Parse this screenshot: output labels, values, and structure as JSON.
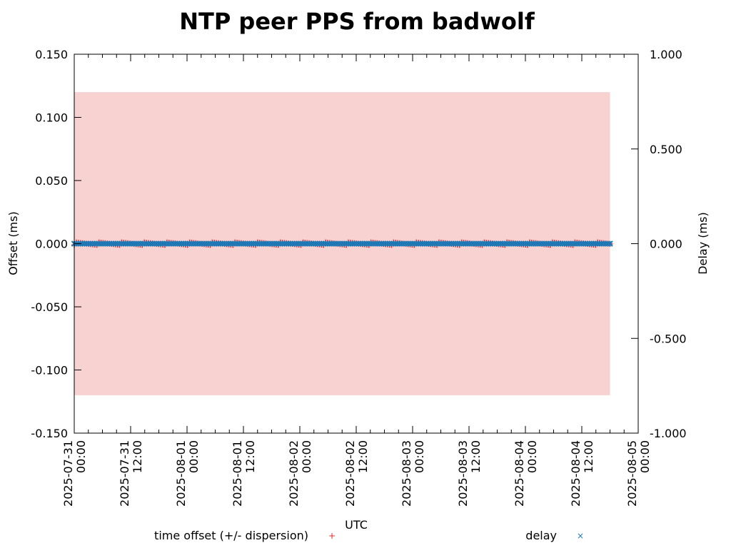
{
  "chart_data": {
    "type": "scatter",
    "title": "NTP peer PPS from badwolf",
    "xlabel": "UTC",
    "ylabel": "Offset (ms)",
    "y2label": "Delay (ms)",
    "x_range": [
      "2025-07-31 00:00",
      "2025-08-05 00:00"
    ],
    "x_ticks": [
      [
        "2025-07-31",
        "00:00"
      ],
      [
        "2025-07-31",
        "12:00"
      ],
      [
        "2025-08-01",
        "00:00"
      ],
      [
        "2025-08-01",
        "12:00"
      ],
      [
        "2025-08-02",
        "00:00"
      ],
      [
        "2025-08-02",
        "12:00"
      ],
      [
        "2025-08-03",
        "00:00"
      ],
      [
        "2025-08-03",
        "12:00"
      ],
      [
        "2025-08-04",
        "00:00"
      ],
      [
        "2025-08-04",
        "12:00"
      ],
      [
        "2025-08-05",
        "00:00"
      ]
    ],
    "ylim": [
      -0.15,
      0.15
    ],
    "y_ticks": [
      "0.150",
      "0.100",
      "0.050",
      "0.000",
      "-0.050",
      "-0.100",
      "-0.150"
    ],
    "y2lim": [
      -1.0,
      1.0
    ],
    "y2_ticks": [
      "1.000",
      "0.500",
      "0.000",
      "-0.500",
      "-1.000"
    ],
    "data_x_range": [
      "2025-07-31 00:00",
      "2025-08-04 18:00"
    ],
    "series": [
      {
        "name": "time offset (+/- dispersion)",
        "axis": "left",
        "color": "#e8242a",
        "marker": "+",
        "offset_approx": 0.0,
        "offset_jitter": 0.002,
        "dispersion_band": [
          -0.12,
          0.12
        ],
        "band_color": "#f8d1d1"
      },
      {
        "name": "delay",
        "axis": "right",
        "color": "#1f78b4",
        "marker": "x",
        "delay_approx": 0.0
      }
    ],
    "legend_position": "bottom",
    "grid": false
  }
}
